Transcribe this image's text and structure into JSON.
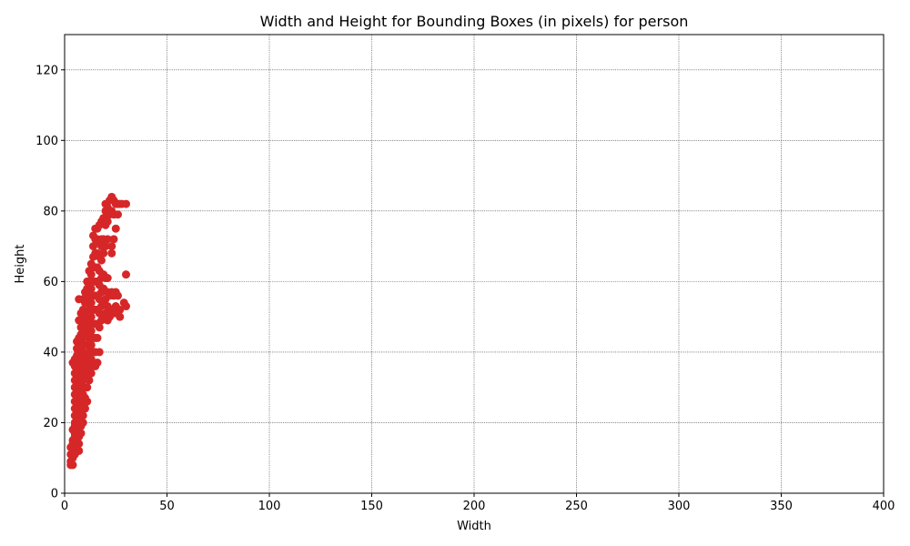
{
  "chart_data": {
    "type": "scatter",
    "title": "Width and Height for Bounding Boxes (in pixels) for person",
    "xlabel": "Width",
    "ylabel": "Height",
    "xlim": [
      0,
      400
    ],
    "ylim": [
      0,
      130
    ],
    "xticks": [
      0,
      50,
      100,
      150,
      200,
      250,
      300,
      350,
      400
    ],
    "yticks": [
      0,
      20,
      40,
      60,
      80,
      100,
      120
    ],
    "grid": true,
    "marker_color": "#d62728",
    "series": [
      {
        "points": [
          [
            3,
            8
          ],
          [
            4,
            8
          ],
          [
            3,
            9
          ],
          [
            4,
            10
          ],
          [
            3,
            11
          ],
          [
            4,
            12
          ],
          [
            3,
            13
          ],
          [
            4,
            14
          ],
          [
            5,
            11
          ],
          [
            5,
            13
          ],
          [
            4,
            15
          ],
          [
            5,
            16
          ],
          [
            5,
            17
          ],
          [
            4,
            18
          ],
          [
            5,
            19
          ],
          [
            6,
            18
          ],
          [
            5,
            20
          ],
          [
            6,
            21
          ],
          [
            5,
            22
          ],
          [
            6,
            23
          ],
          [
            5,
            24
          ],
          [
            6,
            25
          ],
          [
            5,
            26
          ],
          [
            6,
            27
          ],
          [
            5,
            28
          ],
          [
            6,
            29
          ],
          [
            5,
            30
          ],
          [
            6,
            31
          ],
          [
            5,
            32
          ],
          [
            6,
            33
          ],
          [
            5,
            34
          ],
          [
            6,
            35
          ],
          [
            5,
            36
          ],
          [
            6,
            37
          ],
          [
            4,
            37
          ],
          [
            5,
            38
          ],
          [
            6,
            39
          ],
          [
            6,
            41
          ],
          [
            6,
            43
          ],
          [
            7,
            12
          ],
          [
            7,
            14
          ],
          [
            7,
            16
          ],
          [
            7,
            18
          ],
          [
            7,
            20
          ],
          [
            7,
            22
          ],
          [
            7,
            24
          ],
          [
            7,
            26
          ],
          [
            7,
            28
          ],
          [
            7,
            30
          ],
          [
            7,
            32
          ],
          [
            7,
            34
          ],
          [
            7,
            36
          ],
          [
            7,
            38
          ],
          [
            7,
            40
          ],
          [
            7,
            42
          ],
          [
            7,
            44
          ],
          [
            7,
            49
          ],
          [
            7,
            55
          ],
          [
            8,
            17
          ],
          [
            8,
            19
          ],
          [
            8,
            21
          ],
          [
            8,
            23
          ],
          [
            8,
            25
          ],
          [
            8,
            27
          ],
          [
            8,
            29
          ],
          [
            8,
            31
          ],
          [
            8,
            33
          ],
          [
            8,
            35
          ],
          [
            8,
            37
          ],
          [
            8,
            39
          ],
          [
            8,
            41
          ],
          [
            8,
            43
          ],
          [
            8,
            45
          ],
          [
            8,
            47
          ],
          [
            8,
            49
          ],
          [
            8,
            51
          ],
          [
            9,
            20
          ],
          [
            9,
            22
          ],
          [
            9,
            24
          ],
          [
            9,
            26
          ],
          [
            9,
            28
          ],
          [
            9,
            30
          ],
          [
            9,
            32
          ],
          [
            9,
            34
          ],
          [
            9,
            36
          ],
          [
            9,
            38
          ],
          [
            9,
            40
          ],
          [
            9,
            42
          ],
          [
            9,
            44
          ],
          [
            9,
            46
          ],
          [
            9,
            48
          ],
          [
            9,
            50
          ],
          [
            9,
            52
          ],
          [
            9,
            55
          ],
          [
            10,
            24
          ],
          [
            10,
            27
          ],
          [
            10,
            30
          ],
          [
            10,
            33
          ],
          [
            10,
            36
          ],
          [
            10,
            39
          ],
          [
            10,
            42
          ],
          [
            10,
            45
          ],
          [
            10,
            48
          ],
          [
            10,
            51
          ],
          [
            10,
            54
          ],
          [
            10,
            57
          ],
          [
            11,
            26
          ],
          [
            11,
            30
          ],
          [
            11,
            34
          ],
          [
            11,
            38
          ],
          [
            11,
            42
          ],
          [
            11,
            46
          ],
          [
            11,
            50
          ],
          [
            11,
            54
          ],
          [
            11,
            58
          ],
          [
            11,
            60
          ],
          [
            12,
            32
          ],
          [
            12,
            36
          ],
          [
            12,
            40
          ],
          [
            12,
            44
          ],
          [
            12,
            48
          ],
          [
            12,
            52
          ],
          [
            12,
            56
          ],
          [
            12,
            60
          ],
          [
            12,
            63
          ],
          [
            13,
            34
          ],
          [
            13,
            38
          ],
          [
            13,
            42
          ],
          [
            13,
            46
          ],
          [
            13,
            50
          ],
          [
            13,
            54
          ],
          [
            13,
            58
          ],
          [
            13,
            62
          ],
          [
            13,
            65
          ],
          [
            14,
            36
          ],
          [
            14,
            40
          ],
          [
            14,
            44
          ],
          [
            14,
            48
          ],
          [
            14,
            52
          ],
          [
            14,
            56
          ],
          [
            14,
            60
          ],
          [
            14,
            64
          ],
          [
            14,
            67
          ],
          [
            14,
            70
          ],
          [
            14,
            73
          ],
          [
            15,
            36
          ],
          [
            15,
            40
          ],
          [
            15,
            44
          ],
          [
            15,
            48
          ],
          [
            15,
            52
          ],
          [
            15,
            56
          ],
          [
            15,
            60
          ],
          [
            15,
            64
          ],
          [
            15,
            68
          ],
          [
            15,
            72
          ],
          [
            15,
            75
          ],
          [
            16,
            37
          ],
          [
            16,
            44
          ],
          [
            16,
            48
          ],
          [
            16,
            52
          ],
          [
            16,
            56
          ],
          [
            16,
            60
          ],
          [
            16,
            64
          ],
          [
            16,
            68
          ],
          [
            16,
            72
          ],
          [
            16,
            75
          ],
          [
            17,
            40
          ],
          [
            17,
            47
          ],
          [
            17,
            51
          ],
          [
            17,
            55
          ],
          [
            17,
            59
          ],
          [
            17,
            63
          ],
          [
            17,
            67
          ],
          [
            17,
            71
          ],
          [
            17,
            76
          ],
          [
            18,
            49
          ],
          [
            18,
            53
          ],
          [
            18,
            57
          ],
          [
            18,
            61
          ],
          [
            18,
            66
          ],
          [
            18,
            70
          ],
          [
            18,
            72
          ],
          [
            18,
            77
          ],
          [
            19,
            50
          ],
          [
            19,
            54
          ],
          [
            19,
            58
          ],
          [
            19,
            62
          ],
          [
            19,
            68
          ],
          [
            19,
            72
          ],
          [
            19,
            78
          ],
          [
            20,
            51
          ],
          [
            20,
            55
          ],
          [
            20,
            61
          ],
          [
            20,
            70
          ],
          [
            20,
            76
          ],
          [
            20,
            80
          ],
          [
            20,
            82
          ],
          [
            21,
            49
          ],
          [
            21,
            53
          ],
          [
            21,
            57
          ],
          [
            21,
            61
          ],
          [
            21,
            72
          ],
          [
            21,
            77
          ],
          [
            21,
            81
          ],
          [
            22,
            50
          ],
          [
            22,
            56
          ],
          [
            22,
            79
          ],
          [
            22,
            83
          ],
          [
            23,
            52
          ],
          [
            23,
            57
          ],
          [
            23,
            68
          ],
          [
            23,
            70
          ],
          [
            23,
            80
          ],
          [
            23,
            84
          ],
          [
            24,
            51
          ],
          [
            24,
            56
          ],
          [
            24,
            72
          ],
          [
            24,
            79
          ],
          [
            24,
            83
          ],
          [
            25,
            53
          ],
          [
            25,
            57
          ],
          [
            25,
            75
          ],
          [
            25,
            82
          ],
          [
            26,
            51
          ],
          [
            26,
            56
          ],
          [
            26,
            79
          ],
          [
            26,
            82
          ],
          [
            27,
            50
          ],
          [
            27,
            52
          ],
          [
            27,
            82
          ],
          [
            28,
            82
          ],
          [
            29,
            54
          ],
          [
            30,
            53
          ],
          [
            30,
            62
          ],
          [
            30,
            82
          ]
        ]
      }
    ]
  }
}
